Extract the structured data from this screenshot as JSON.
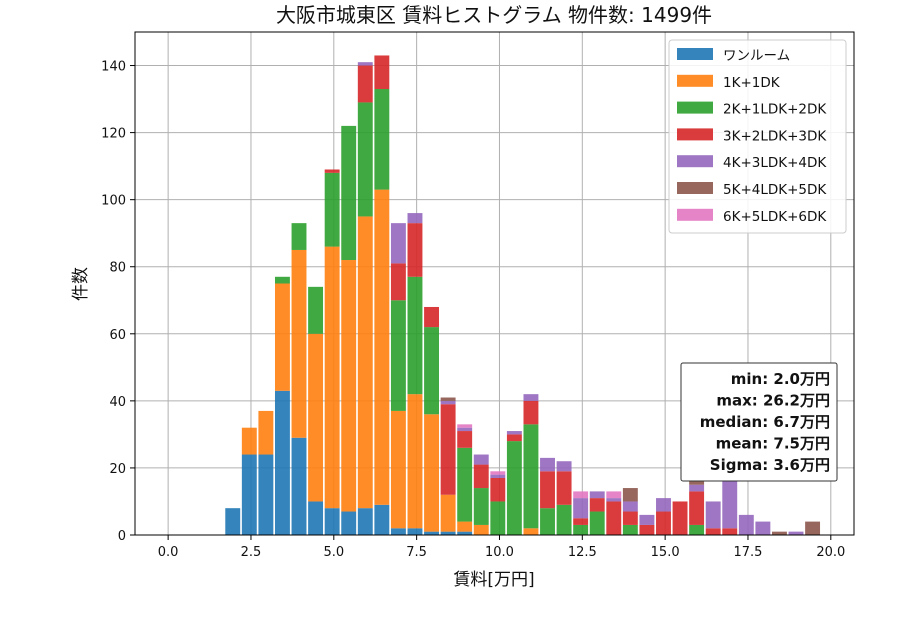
{
  "chart_data": {
    "type": "bar",
    "title": "大阪市城東区 賃料ヒストグラム 物件数: 1499件",
    "xlabel": "賃料[万円]",
    "ylabel": "件数",
    "xlim": [
      -1.0,
      20.7
    ],
    "ylim": [
      0,
      150
    ],
    "xticks": [
      0.0,
      2.5,
      5.0,
      7.5,
      10.0,
      12.5,
      15.0,
      17.5,
      20.0
    ],
    "xtick_labels": [
      "0.0",
      "2.5",
      "5.0",
      "7.5",
      "10.0",
      "12.5",
      "15.0",
      "17.5",
      "20.0"
    ],
    "yticks": [
      0,
      20,
      40,
      60,
      80,
      100,
      120,
      140
    ],
    "ytick_labels": [
      "0",
      "20",
      "40",
      "60",
      "80",
      "100",
      "120",
      "140"
    ],
    "grid": true,
    "legend_position": "top-right",
    "stacked": true,
    "bin_width": 0.5,
    "bar_width": 0.45,
    "bin_centers": [
      1.95,
      2.45,
      2.95,
      3.45,
      3.95,
      4.45,
      4.95,
      5.45,
      5.95,
      6.45,
      6.95,
      7.45,
      7.95,
      8.45,
      8.95,
      9.45,
      9.95,
      10.45,
      10.95,
      11.45,
      11.95,
      12.45,
      12.95,
      13.45,
      13.95,
      14.45,
      14.95,
      15.45,
      15.95,
      16.45,
      16.95,
      17.45,
      17.95,
      18.45,
      18.95,
      19.45
    ],
    "series": [
      {
        "name": "ワンルーム",
        "color": "#1f77b4",
        "values": [
          8,
          24,
          24,
          43,
          29,
          10,
          8,
          7,
          8,
          9,
          2,
          2,
          1,
          1,
          1,
          0,
          0,
          0,
          0,
          0,
          0,
          0,
          0,
          0,
          0,
          0,
          0,
          0,
          0,
          0,
          0,
          0,
          0,
          0,
          0,
          0
        ]
      },
      {
        "name": "1K+1DK",
        "color": "#ff7f0e",
        "values": [
          0,
          8,
          13,
          32,
          56,
          50,
          78,
          75,
          87,
          94,
          35,
          40,
          35,
          11,
          3,
          3,
          0,
          0,
          2,
          0,
          0,
          0,
          0,
          0,
          0,
          0,
          0,
          0,
          0,
          0,
          0,
          0,
          0,
          0,
          0,
          0
        ]
      },
      {
        "name": "2K+1LDK+2DK",
        "color": "#2ca02c",
        "values": [
          0,
          0,
          0,
          2,
          8,
          14,
          22,
          40,
          34,
          30,
          33,
          35,
          26,
          0,
          22,
          11,
          10,
          28,
          31,
          8,
          9,
          3,
          7,
          0,
          3,
          0,
          0,
          0,
          3,
          0,
          0,
          0,
          0,
          0,
          0,
          0
        ]
      },
      {
        "name": "3K+2LDK+3DK",
        "color": "#d62728",
        "values": [
          0,
          0,
          0,
          0,
          0,
          0,
          1,
          0,
          11,
          10,
          11,
          16,
          6,
          27,
          5,
          7,
          7,
          2,
          7,
          11,
          10,
          2,
          4,
          10,
          4,
          3,
          7,
          10,
          10,
          2,
          2,
          0,
          0,
          0,
          0,
          0
        ]
      },
      {
        "name": "4K+3LDK+4DK",
        "color": "#9467bd",
        "values": [
          0,
          0,
          0,
          0,
          0,
          0,
          0,
          0,
          1,
          0,
          12,
          3,
          0,
          1,
          1,
          3,
          1,
          1,
          2,
          4,
          3,
          6,
          2,
          1,
          3,
          3,
          4,
          0,
          2,
          8,
          15,
          6,
          4,
          0,
          1,
          0
        ]
      },
      {
        "name": "5K+4LDK+5DK",
        "color": "#8c564b",
        "values": [
          0,
          0,
          0,
          0,
          0,
          0,
          0,
          0,
          0,
          0,
          0,
          0,
          0,
          1,
          0,
          0,
          0,
          0,
          0,
          0,
          0,
          0,
          0,
          0,
          4,
          0,
          0,
          0,
          1,
          0,
          0,
          0,
          0,
          1,
          0,
          4
        ]
      },
      {
        "name": "6K+5LDK+6DK",
        "color": "#e377c2",
        "values": [
          0,
          0,
          0,
          0,
          0,
          0,
          0,
          0,
          0,
          0,
          0,
          0,
          0,
          0,
          1,
          0,
          1,
          0,
          0,
          0,
          0,
          2,
          0,
          2,
          0,
          0,
          0,
          0,
          0,
          0,
          0,
          0,
          0,
          0,
          0,
          0
        ]
      }
    ],
    "stats": [
      "min: 2.0万円",
      "max: 26.2万円",
      "median: 6.7万円",
      "mean: 7.5万円",
      "Sigma: 3.6万円"
    ]
  }
}
